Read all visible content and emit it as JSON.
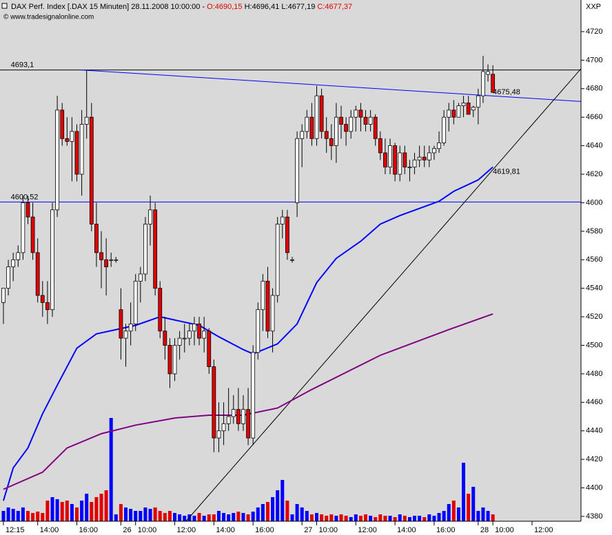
{
  "chart_data": {
    "type": "candlestick",
    "title": "DAX Perf. Index [.DAX  15 Minuten] 28.11.2008 10:00:00 - ",
    "ohlc_labels": [
      {
        "text": "O:4690,15",
        "color": "#e00000"
      },
      {
        "text": "H:4696,41",
        "color": "#000000"
      },
      {
        "text": "L:4677,19",
        "color": "#000000"
      },
      {
        "text": "C:4677,37",
        "color": "#e00000"
      }
    ],
    "copyright": "© www.tradesignalonline.com",
    "y_axis_label": "XXP",
    "up_color": "#ffffff",
    "down_color": "#e00000",
    "volume_up_color": "#0000ff",
    "volume_down_color": "#e00000",
    "ylim": [
      4376.6,
      4742.2
    ],
    "yticks": [
      4380,
      4400,
      4420,
      4440,
      4460,
      4480,
      4500,
      4520,
      4540,
      4560,
      4580,
      4600,
      4620,
      4640,
      4660,
      4680,
      4700,
      4720
    ],
    "xlim": [
      -0.7,
      118
    ],
    "xticks": [
      {
        "value": 0,
        "label": "12:15"
      },
      {
        "value": 7,
        "label": "14:00"
      },
      {
        "value": 15,
        "label": "16:00"
      },
      {
        "value": 24,
        "label": "26"
      },
      {
        "value": 27,
        "label": "10:00"
      },
      {
        "value": 35,
        "label": "12:00"
      },
      {
        "value": 43,
        "label": "14:00"
      },
      {
        "value": 51,
        "label": "16:00"
      },
      {
        "value": 61,
        "label": "27"
      },
      {
        "value": 64,
        "label": "10:00"
      },
      {
        "value": 72,
        "label": "12:00"
      },
      {
        "value": 80,
        "label": "14:00"
      },
      {
        "value": 88,
        "label": "16:00"
      },
      {
        "value": 97,
        "label": "28"
      },
      {
        "value": 100,
        "label": "10:00"
      },
      {
        "value": 108,
        "label": "12:00"
      }
    ],
    "ohlc": [
      [
        4530,
        4540,
        4515,
        4540
      ],
      [
        4540,
        4560,
        4535,
        4555
      ],
      [
        4555,
        4565,
        4545,
        4560
      ],
      [
        4560,
        4570,
        4555,
        4565
      ],
      [
        4565,
        4605,
        4560,
        4600
      ],
      [
        4600,
        4605,
        4585,
        4590
      ],
      [
        4590,
        4600,
        4560,
        4565
      ],
      [
        4565,
        4575,
        4530,
        4535
      ],
      [
        4535,
        4545,
        4520,
        4530
      ],
      [
        4530,
        4545,
        4515,
        4525
      ],
      [
        4525,
        4600,
        4520,
        4595
      ],
      [
        4595,
        4675,
        4590,
        4665
      ],
      [
        4665,
        4670,
        4640,
        4645
      ],
      [
        4645,
        4660,
        4640,
        4643
      ],
      [
        4643,
        4660,
        4615,
        4650
      ],
      [
        4650,
        4655,
        4615,
        4620
      ],
      [
        4620,
        4665,
        4605,
        4655
      ],
      [
        4655,
        4693,
        4645,
        4660
      ],
      [
        4660,
        4670,
        4580,
        4585
      ],
      [
        4585,
        4600,
        4555,
        4565
      ],
      [
        4565,
        4580,
        4540,
        4560
      ],
      [
        4560,
        4575,
        4535,
        4555
      ],
      [
        4560,
        4565,
        4555,
        4560
      ],
      [
        4560,
        4562,
        4558,
        4560
      ],
      [
        4525,
        4540,
        4490,
        4505
      ],
      [
        4505,
        4515,
        4485,
        4510
      ],
      [
        4510,
        4530,
        4500,
        4515
      ],
      [
        4515,
        4550,
        4510,
        4545
      ],
      [
        4545,
        4555,
        4530,
        4550
      ],
      [
        4550,
        4590,
        4545,
        4585
      ],
      [
        4585,
        4605,
        4570,
        4595
      ],
      [
        4595,
        4600,
        4535,
        4540
      ],
      [
        4540,
        4545,
        4505,
        4510
      ],
      [
        4510,
        4520,
        4490,
        4500
      ],
      [
        4500,
        4505,
        4470,
        4480
      ],
      [
        4480,
        4505,
        4475,
        4500
      ],
      [
        4500,
        4510,
        4490,
        4505
      ],
      [
        4505,
        4515,
        4495,
        4505
      ],
      [
        4505,
        4515,
        4500,
        4510
      ],
      [
        4510,
        4520,
        4500,
        4515
      ],
      [
        4515,
        4520,
        4500,
        4505
      ],
      [
        4505,
        4520,
        4495,
        4510
      ],
      [
        4510,
        4512,
        4480,
        4485
      ],
      [
        4485,
        4490,
        4425,
        4435
      ],
      [
        4435,
        4460,
        4425,
        4440
      ],
      [
        4440,
        4460,
        4430,
        4445
      ],
      [
        4445,
        4470,
        4440,
        4450
      ],
      [
        4450,
        4465,
        4445,
        4455
      ],
      [
        4455,
        4470,
        4440,
        4445
      ],
      [
        4445,
        4465,
        4440,
        4455
      ],
      [
        4455,
        4470,
        4430,
        4435
      ],
      [
        4435,
        4500,
        4430,
        4495
      ],
      [
        4495,
        4530,
        4490,
        4525
      ],
      [
        4525,
        4550,
        4510,
        4545
      ],
      [
        4545,
        4555,
        4505,
        4510
      ],
      [
        4510,
        4540,
        4495,
        4535
      ],
      [
        4535,
        4590,
        4530,
        4585
      ],
      [
        4585,
        4595,
        4575,
        4590
      ],
      [
        4590,
        4595,
        4560,
        4565
      ],
      [
        4560,
        4562,
        4558,
        4560
      ],
      [
        4600,
        4650,
        4590,
        4645
      ],
      [
        4645,
        4655,
        4625,
        4650
      ],
      [
        4650,
        4665,
        4645,
        4660
      ],
      [
        4660,
        4670,
        4640,
        4645
      ],
      [
        4645,
        4682,
        4640,
        4675
      ],
      [
        4675,
        4680,
        4645,
        4650
      ],
      [
        4650,
        4660,
        4635,
        4645
      ],
      [
        4645,
        4655,
        4630,
        4640
      ],
      [
        4640,
        4670,
        4628,
        4660
      ],
      [
        4660,
        4668,
        4645,
        4655
      ],
      [
        4655,
        4660,
        4640,
        4650
      ],
      [
        4650,
        4665,
        4645,
        4660
      ],
      [
        4660,
        4668,
        4650,
        4665
      ],
      [
        4665,
        4670,
        4650,
        4660
      ],
      [
        4660,
        4665,
        4650,
        4655
      ],
      [
        4655,
        4665,
        4650,
        4660
      ],
      [
        4660,
        4662,
        4640,
        4645
      ],
      [
        4645,
        4650,
        4630,
        4635
      ],
      [
        4635,
        4645,
        4620,
        4625
      ],
      [
        4625,
        4645,
        4620,
        4640
      ],
      [
        4640,
        4642,
        4615,
        4620
      ],
      [
        4620,
        4640,
        4615,
        4635
      ],
      [
        4635,
        4640,
        4620,
        4625
      ],
      [
        4625,
        4630,
        4615,
        4625
      ],
      [
        4625,
        4635,
        4620,
        4630
      ],
      [
        4630,
        4640,
        4625,
        4632
      ],
      [
        4632,
        4640,
        4625,
        4630
      ],
      [
        4630,
        4640,
        4625,
        4635
      ],
      [
        4635,
        4640,
        4630,
        4638
      ],
      [
        4638,
        4650,
        4635,
        4642
      ],
      [
        4642,
        4665,
        4640,
        4660
      ],
      [
        4660,
        4670,
        4650,
        4665
      ],
      [
        4665,
        4672,
        4655,
        4660
      ],
      [
        4660,
        4670,
        4660,
        4668
      ],
      [
        4668,
        4675,
        4660,
        4670
      ],
      [
        4670,
        4675,
        4662,
        4662
      ],
      [
        4665,
        4668,
        4660,
        4667
      ],
      [
        4667,
        4680,
        4655,
        4675
      ],
      [
        4675,
        4703,
        4670,
        4692
      ],
      [
        4690,
        4697,
        4685,
        4692
      ],
      [
        4690.15,
        4696.41,
        4677.19,
        4677.37
      ]
    ],
    "volume_lim": [
      0,
      757
    ],
    "volume": [
      15,
      20,
      18,
      15,
      20,
      15,
      12,
      14,
      12,
      30,
      35,
      32,
      28,
      30,
      25,
      20,
      30,
      40,
      28,
      35,
      40,
      45,
      150,
      10,
      25,
      20,
      18,
      15,
      15,
      20,
      18,
      20,
      15,
      12,
      15,
      12,
      10,
      8,
      10,
      8,
      12,
      8,
      10,
      10,
      15,
      12,
      10,
      12,
      14,
      12,
      10,
      14,
      20,
      25,
      28,
      35,
      45,
      60,
      30,
      10,
      25,
      20,
      15,
      10,
      12,
      10,
      8,
      10,
      8,
      10,
      8,
      6,
      10,
      8,
      10,
      8,
      6,
      10,
      8,
      8,
      6,
      10,
      8,
      6,
      8,
      8,
      6,
      10,
      8,
      12,
      15,
      25,
      30,
      20,
      85,
      40,
      50,
      15,
      20,
      15,
      10
    ],
    "moving_averages": [
      {
        "color": "#0000ff",
        "x": [
          0,
          2,
          5,
          8,
          11,
          15,
          19,
          23,
          27,
          32,
          36,
          40,
          44,
          49,
          51,
          56,
          60,
          64,
          68,
          73,
          77,
          81,
          85,
          89,
          92,
          97,
          100
        ],
        "values": [
          4391,
          4414,
          4428,
          4452,
          4472,
          4498,
          4508,
          4511,
          4514,
          4520,
          4517,
          4514,
          4506,
          4497,
          4494,
          4501,
          4515,
          4544,
          4561,
          4573,
          4585,
          4591,
          4596,
          4601,
          4608,
          4616,
          4625
        ]
      },
      {
        "color": "#800080",
        "x": [
          0,
          8,
          13,
          20,
          27,
          35,
          42,
          49,
          56,
          63,
          70,
          77,
          84,
          91,
          100
        ],
        "values": [
          4399,
          4411,
          4428,
          4438,
          4444,
          4449,
          4451,
          4451,
          4456,
          4469,
          4481,
          4493,
          4502,
          4511,
          4522
        ]
      }
    ],
    "lines": [
      {
        "color": "#000000",
        "x": [
          -0.7,
          118
        ],
        "values": [
          4693.1,
          4693.1
        ],
        "label": "4693,1",
        "label_value": 4693.1,
        "label_x": 1.5
      },
      {
        "color": "#0000ff",
        "x": [
          -0.7,
          118
        ],
        "values": [
          4600.52,
          4600.52
        ],
        "label": "4600,52",
        "label_value": 4600.52,
        "label_x": 1.5
      },
      {
        "color": "#0000ff",
        "x": [
          16,
          118
        ],
        "values": [
          4693.1,
          4671
        ],
        "label": "4675,48",
        "label_value": 4675.48,
        "label_x": 100
      },
      {
        "color": "#000000",
        "x": [
          37.3,
          118
        ],
        "values": [
          4376.6,
          4694
        ],
        "label": "4619,81",
        "label_value": 4619.81,
        "label_x": 100
      }
    ]
  }
}
